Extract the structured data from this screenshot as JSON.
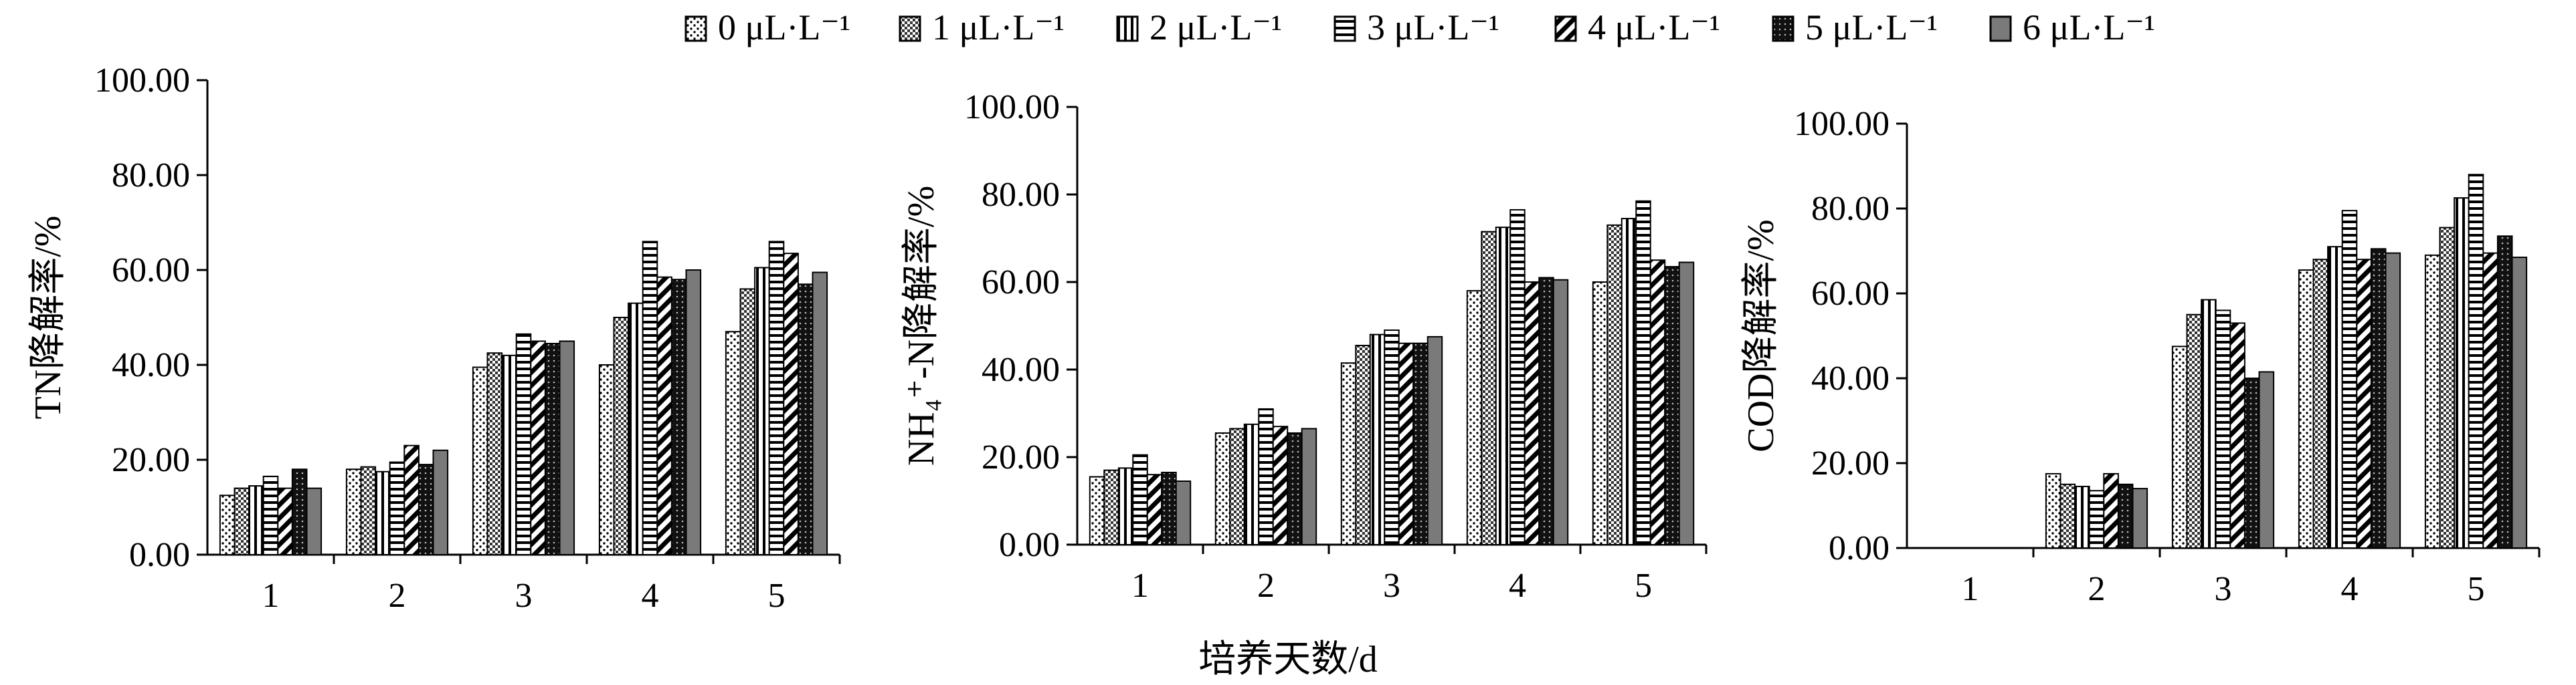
{
  "legend": [
    {
      "name": "0 μL·L⁻¹",
      "pattern": "dots"
    },
    {
      "name": "1 μL·L⁻¹",
      "pattern": "checker"
    },
    {
      "name": "2 μL·L⁻¹",
      "pattern": "vlines"
    },
    {
      "name": "3 μL·L⁻¹",
      "pattern": "hlines"
    },
    {
      "name": "4 μL·L⁻¹",
      "pattern": "diag"
    },
    {
      "name": "5 μL·L⁻¹",
      "pattern": "darkdots"
    },
    {
      "name": "6 μL·L⁻¹",
      "pattern": "gray"
    }
  ],
  "shared_xlabel": "培养天数/d",
  "chart_data": [
    {
      "type": "bar",
      "ylabel": "TN降解率/%",
      "xlabel": "",
      "categories": [
        "1",
        "2",
        "3",
        "4",
        "5"
      ],
      "ylim": [
        0,
        100
      ],
      "yticks": [
        "0.00",
        "20.00",
        "40.00",
        "60.00",
        "80.00",
        "100.00"
      ],
      "series": [
        {
          "name": "0 μL·L⁻¹",
          "values": [
            12.5,
            18.0,
            39.5,
            40.0,
            47.0
          ]
        },
        {
          "name": "1 μL·L⁻¹",
          "values": [
            14.0,
            18.5,
            42.5,
            50.0,
            56.0
          ]
        },
        {
          "name": "2 μL·L⁻¹",
          "values": [
            14.5,
            17.5,
            42.0,
            53.0,
            60.5
          ]
        },
        {
          "name": "3 μL·L⁻¹",
          "values": [
            16.5,
            19.5,
            46.5,
            66.0,
            66.0
          ]
        },
        {
          "name": "4 μL·L⁻¹",
          "values": [
            14.0,
            23.0,
            45.0,
            58.5,
            63.5
          ]
        },
        {
          "name": "5 μL·L⁻¹",
          "values": [
            18.0,
            19.0,
            44.5,
            58.0,
            57.0
          ]
        },
        {
          "name": "6 μL·L⁻¹",
          "values": [
            14.0,
            22.0,
            45.0,
            60.0,
            59.5
          ]
        }
      ]
    },
    {
      "type": "bar",
      "ylabel": "NH₄⁺-N降解率/%",
      "xlabel": "",
      "categories": [
        "1",
        "2",
        "3",
        "4",
        "5"
      ],
      "ylim": [
        0,
        100
      ],
      "yticks": [
        "0.00",
        "20.00",
        "40.00",
        "60.00",
        "80.00",
        "100.00"
      ],
      "series": [
        {
          "name": "0 μL·L⁻¹",
          "values": [
            15.5,
            25.5,
            41.5,
            58.0,
            60.0
          ]
        },
        {
          "name": "1 μL·L⁻¹",
          "values": [
            17.0,
            26.5,
            45.5,
            71.5,
            73.0
          ]
        },
        {
          "name": "2 μL·L⁻¹",
          "values": [
            17.5,
            27.5,
            48.0,
            72.5,
            74.5
          ]
        },
        {
          "name": "3 μL·L⁻¹",
          "values": [
            20.5,
            31.0,
            49.0,
            76.5,
            78.5
          ]
        },
        {
          "name": "4 μL·L⁻¹",
          "values": [
            16.0,
            27.0,
            46.0,
            60.0,
            65.0
          ]
        },
        {
          "name": "5 μL·L⁻¹",
          "values": [
            16.5,
            25.5,
            46.0,
            61.0,
            63.5
          ]
        },
        {
          "name": "6 μL·L⁻¹",
          "values": [
            14.5,
            26.5,
            47.5,
            60.5,
            64.5
          ]
        }
      ]
    },
    {
      "type": "bar",
      "ylabel": "COD降解率/%",
      "xlabel": "",
      "categories": [
        "1",
        "2",
        "3",
        "4",
        "5"
      ],
      "ylim": [
        0,
        100
      ],
      "yticks": [
        "0.00",
        "20.00",
        "40.00",
        "60.00",
        "80.00",
        "100.00"
      ],
      "series": [
        {
          "name": "0 μL·L⁻¹",
          "values": [
            0,
            17.5,
            47.5,
            65.5,
            69.0
          ]
        },
        {
          "name": "1 μL·L⁻¹",
          "values": [
            0,
            15.0,
            55.0,
            68.0,
            75.5
          ]
        },
        {
          "name": "2 μL·L⁻¹",
          "values": [
            0,
            14.5,
            58.5,
            71.0,
            82.5
          ]
        },
        {
          "name": "3 μL·L⁻¹",
          "values": [
            0,
            13.5,
            56.0,
            79.5,
            88.0
          ]
        },
        {
          "name": "4 μL·L⁻¹",
          "values": [
            0,
            17.5,
            53.0,
            68.0,
            69.5
          ]
        },
        {
          "name": "5 μL·L⁻¹",
          "values": [
            0,
            15.0,
            40.0,
            70.5,
            73.5
          ]
        },
        {
          "name": "6 μL·L⁻¹",
          "values": [
            0,
            14.0,
            41.5,
            69.5,
            68.5
          ]
        }
      ]
    }
  ]
}
